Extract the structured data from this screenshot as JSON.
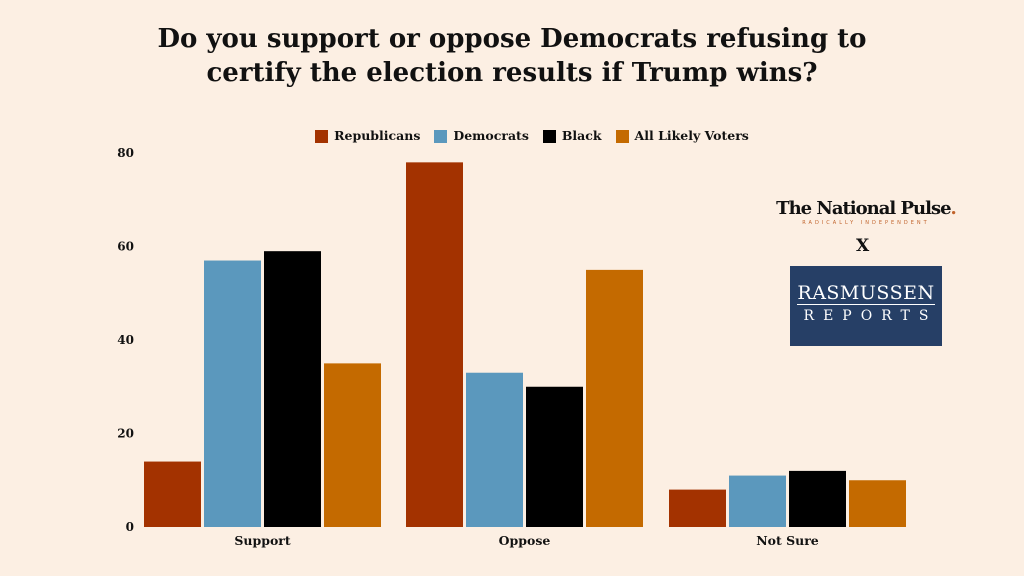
{
  "chart_data": {
    "type": "bar",
    "title": "Do you support or oppose Democrats refusing to certify the election results if Trump wins?",
    "categories": [
      "Support",
      "Oppose",
      "Not Sure"
    ],
    "series": [
      {
        "name": "Republicans",
        "color": "#a33200",
        "values": [
          14,
          78,
          8
        ]
      },
      {
        "name": "Democrats",
        "color": "#5b98bd",
        "values": [
          57,
          33,
          11
        ]
      },
      {
        "name": "Black",
        "color": "#000000",
        "values": [
          59,
          30,
          12
        ]
      },
      {
        "name": "All Likely Voters",
        "color": "#c46a00",
        "values": [
          35,
          55,
          10
        ]
      }
    ],
    "yticks": [
      0,
      20,
      40,
      60,
      80
    ],
    "ylim": [
      0,
      80
    ],
    "grid": false,
    "legend": "top"
  },
  "logos": {
    "national_pulse": "The National Pulse",
    "national_pulse_dot": ".",
    "national_pulse_tagline": "RADICALLY INDEPENDENT",
    "separator": "X",
    "rasmussen_line1": "RASMUSSEN",
    "rasmussen_line2": "REPORTS"
  }
}
